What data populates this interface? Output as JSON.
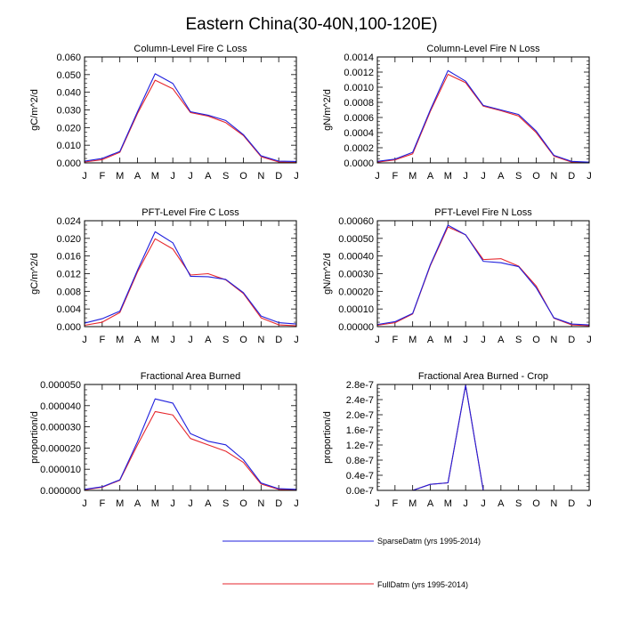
{
  "figure": {
    "title": "Eastern China(30-40N,100-120E)"
  },
  "legend": {
    "entries": [
      {
        "label": "SparseDatm (yrs 1995-2014)",
        "color": "#1f1fdd"
      },
      {
        "label": "FullDatm (yrs 1995-2014)",
        "color": "#e6262c"
      }
    ]
  },
  "chart_data": [
    {
      "type": "line",
      "title": "Column-Level Fire C Loss",
      "xlabel": "",
      "ylabel": "gC/m^2/d",
      "categories": [
        "J",
        "F",
        "M",
        "A",
        "M",
        "J",
        "J",
        "A",
        "S",
        "O",
        "N",
        "D",
        "J"
      ],
      "ylim": [
        0,
        0.06
      ],
      "yticks": [
        0,
        0.01,
        0.02,
        0.03,
        0.04,
        0.05,
        0.06
      ],
      "ytick_labels": [
        "0.000",
        "0.010",
        "0.020",
        "0.030",
        "0.040",
        "0.050",
        "0.060"
      ],
      "series": [
        {
          "name": "SparseDatm (yrs 1995-2014)",
          "color": "#1f1fdd",
          "values": [
            0.001,
            0.0025,
            0.0065,
            0.029,
            0.0505,
            0.045,
            0.029,
            0.027,
            0.024,
            0.016,
            0.004,
            0.001,
            0.0008
          ]
        },
        {
          "name": "FullDatm (yrs 1995-2014)",
          "color": "#e6262c",
          "values": [
            0.0005,
            0.0018,
            0.006,
            0.028,
            0.0468,
            0.042,
            0.0285,
            0.0265,
            0.0228,
            0.0155,
            0.0035,
            0.0005,
            0.0002
          ]
        }
      ]
    },
    {
      "type": "line",
      "title": "Column-Level Fire N Loss",
      "xlabel": "",
      "ylabel": "gN/m^2/d",
      "categories": [
        "J",
        "F",
        "M",
        "A",
        "M",
        "J",
        "J",
        "A",
        "S",
        "O",
        "N",
        "D",
        "J"
      ],
      "ylim": [
        0,
        0.0014
      ],
      "yticks": [
        0,
        0.0002,
        0.0004,
        0.0006,
        0.0008,
        0.001,
        0.0012,
        0.0014
      ],
      "ytick_labels": [
        "0.0000",
        "0.0002",
        "0.0004",
        "0.0006",
        "0.0008",
        "0.0010",
        "0.0012",
        "0.0014"
      ],
      "series": [
        {
          "name": "SparseDatm (yrs 1995-2014)",
          "color": "#1f1fdd",
          "values": [
            2e-05,
            5e-05,
            0.00014,
            0.0007,
            0.00122,
            0.00108,
            0.00076,
            0.0007,
            0.00064,
            0.00042,
            0.0001,
            2e-05,
            1e-05
          ]
        },
        {
          "name": "FullDatm (yrs 1995-2014)",
          "color": "#e6262c",
          "values": [
            1e-05,
            4e-05,
            0.00012,
            0.00068,
            0.00117,
            0.00106,
            0.00075,
            0.00069,
            0.00062,
            0.0004,
            9e-05,
            1e-05,
            1e-05
          ]
        }
      ]
    },
    {
      "type": "line",
      "title": "PFT-Level Fire C Loss",
      "xlabel": "",
      "ylabel": "gC/m^2/d",
      "categories": [
        "J",
        "F",
        "M",
        "A",
        "M",
        "J",
        "J",
        "A",
        "S",
        "O",
        "N",
        "D",
        "J"
      ],
      "ylim": [
        0,
        0.024
      ],
      "yticks": [
        0,
        0.004,
        0.008,
        0.012,
        0.016,
        0.02,
        0.024
      ],
      "ytick_labels": [
        "0.000",
        "0.004",
        "0.008",
        "0.012",
        "0.016",
        "0.020",
        "0.024"
      ],
      "series": [
        {
          "name": "SparseDatm (yrs 1995-2014)",
          "color": "#1f1fdd",
          "values": [
            0.0008,
            0.0018,
            0.0035,
            0.0128,
            0.0215,
            0.019,
            0.0114,
            0.0113,
            0.0107,
            0.0077,
            0.0024,
            0.0009,
            0.0006
          ]
        },
        {
          "name": "FullDatm (yrs 1995-2014)",
          "color": "#e6262c",
          "values": [
            0.0003,
            0.001,
            0.0032,
            0.0124,
            0.0199,
            0.0176,
            0.0117,
            0.012,
            0.0106,
            0.0075,
            0.002,
            0.0004,
            0.0002
          ]
        }
      ]
    },
    {
      "type": "line",
      "title": "PFT-Level Fire N Loss",
      "xlabel": "",
      "ylabel": "gN/m^2/d",
      "categories": [
        "J",
        "F",
        "M",
        "A",
        "M",
        "J",
        "J",
        "A",
        "S",
        "O",
        "N",
        "D",
        "J"
      ],
      "ylim": [
        0,
        0.0006
      ],
      "yticks": [
        0,
        0.0001,
        0.0002,
        0.0003,
        0.0004,
        0.0005,
        0.0006
      ],
      "ytick_labels": [
        "0.00000",
        "0.00010",
        "0.00020",
        "0.00030",
        "0.00040",
        "0.00050",
        "0.00060"
      ],
      "series": [
        {
          "name": "SparseDatm (yrs 1995-2014)",
          "color": "#1f1fdd",
          "values": [
            1.2e-05,
            2.8e-05,
            7.5e-05,
            0.00035,
            0.000575,
            0.00052,
            0.00037,
            0.000362,
            0.00034,
            0.00022,
            5e-05,
            1.5e-05,
            1e-05
          ]
        },
        {
          "name": "FullDatm (yrs 1995-2014)",
          "color": "#e6262c",
          "values": [
            8e-06,
            2.2e-05,
            7.2e-05,
            0.000345,
            0.000565,
            0.00052,
            0.00038,
            0.000385,
            0.000343,
            0.00023,
            4.8e-05,
            1e-05,
            5e-06
          ]
        }
      ]
    },
    {
      "type": "line",
      "title": "Fractional Area Burned",
      "xlabel": "",
      "ylabel": "proportion/d",
      "categories": [
        "J",
        "F",
        "M",
        "A",
        "M",
        "J",
        "J",
        "A",
        "S",
        "O",
        "N",
        "D",
        "J"
      ],
      "ylim": [
        0,
        5e-05
      ],
      "yticks": [
        0,
        1e-05,
        2e-05,
        3e-05,
        4e-05,
        5e-05
      ],
      "ytick_labels": [
        "0.000000",
        "0.000010",
        "0.000020",
        "0.000030",
        "0.000040",
        "0.000050"
      ],
      "series": [
        {
          "name": "SparseDatm (yrs 1995-2014)",
          "color": "#1f1fdd",
          "values": [
            5e-07,
            1.7e-06,
            5e-06,
            2.3e-05,
            4.32e-05,
            4.12e-05,
            2.68e-05,
            2.32e-05,
            2.15e-05,
            1.45e-05,
            3.5e-06,
            8e-07,
            5e-07
          ]
        },
        {
          "name": "FullDatm (yrs 1995-2014)",
          "color": "#e6262c",
          "values": [
            3e-07,
            1.5e-06,
            4.8e-06,
            2.15e-05,
            3.72e-05,
            3.56e-05,
            2.45e-05,
            2.15e-05,
            1.85e-05,
            1.32e-05,
            3e-06,
            5e-07,
            2e-07
          ]
        }
      ]
    },
    {
      "type": "line",
      "title": "Fractional Area Burned - Crop",
      "xlabel": "",
      "ylabel": "proportion/d",
      "categories": [
        "J",
        "F",
        "M",
        "A",
        "M",
        "J",
        "J",
        "A",
        "S",
        "O",
        "N",
        "D",
        "J"
      ],
      "ylim": [
        0,
        2.8e-07
      ],
      "yticks": [
        0,
        4e-08,
        8e-08,
        1.2e-07,
        1.6e-07,
        2e-07,
        2.4e-07,
        2.8e-07
      ],
      "ytick_labels": [
        "0.0e-7",
        "0.4e-7",
        "0.8e-7",
        "1.2e-7",
        "1.6e-7",
        "2.0e-7",
        "2.4e-7",
        "2.8e-7"
      ],
      "series": [
        {
          "name": "SparseDatm (yrs 1995-2014)",
          "color": "#1f1fdd",
          "values": [
            0,
            0,
            0,
            1.6e-08,
            2e-08,
            2.78e-07,
            0,
            0,
            0,
            0,
            0,
            0,
            0
          ]
        },
        {
          "name": "FullDatm (yrs 1995-2014)",
          "color": "#e6262c",
          "values": [
            0,
            0,
            0,
            1.6e-08,
            2e-08,
            2.78e-07,
            0,
            0,
            0,
            0,
            0,
            0,
            0
          ]
        }
      ]
    }
  ]
}
